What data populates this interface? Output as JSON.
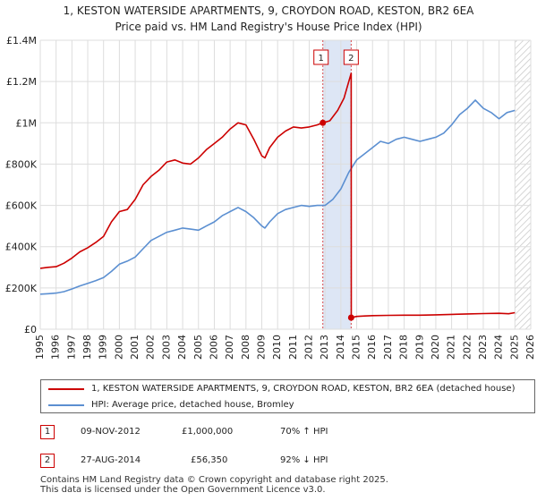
{
  "title_line1": "1, KESTON WATERSIDE APARTMENTS, 9, CROYDON ROAD, KESTON, BR2 6EA",
  "title_line2": "Price paid vs. HM Land Registry's House Price Index (HPI)",
  "chart_data": {
    "type": "line",
    "title": "1, KESTON WATERSIDE APARTMENTS, 9, CROYDON ROAD, KESTON, BR2 6EA - Price paid vs. HM Land Registry's House Price Index (HPI)",
    "xlabel": "",
    "ylabel": "",
    "xlim": [
      1995,
      2026
    ],
    "ylim": [
      0,
      1400000
    ],
    "y_ticks": [
      0,
      200000,
      400000,
      600000,
      800000,
      1000000,
      1200000,
      1400000
    ],
    "y_tick_labels": [
      "£0",
      "£200K",
      "£400K",
      "£600K",
      "£800K",
      "£1M",
      "£1.2M",
      "£1.4M"
    ],
    "x_ticks": [
      1995,
      1996,
      1997,
      1998,
      1999,
      2000,
      2001,
      2002,
      2003,
      2004,
      2005,
      2006,
      2007,
      2008,
      2009,
      2010,
      2011,
      2012,
      2013,
      2014,
      2015,
      2016,
      2017,
      2018,
      2019,
      2020,
      2021,
      2022,
      2023,
      2024,
      2025,
      2026
    ],
    "x_tick_labels": [
      "1995",
      "1996",
      "1997",
      "1998",
      "1999",
      "2000",
      "2001",
      "2002",
      "2003",
      "2004",
      "2005",
      "2006",
      "2007",
      "2008",
      "2009",
      "2010",
      "2011",
      "2012",
      "2013",
      "2014",
      "2015",
      "2016",
      "2017",
      "2018",
      "2019",
      "2020",
      "2021",
      "2022",
      "2023",
      "2024",
      "2025",
      "2026"
    ],
    "grid": true,
    "shaded_range": [
      2012.86,
      2014.65
    ],
    "hatched_from": 2025.0,
    "series": [
      {
        "name": "1, KESTON WATERSIDE APARTMENTS, 9, CROYDON ROAD, KESTON, BR2 6EA (detached house)",
        "color": "#cc0000",
        "x": [
          1995.0,
          1995.5,
          1996.0,
          1996.5,
          1997.0,
          1997.5,
          1998.0,
          1998.5,
          1999.0,
          1999.5,
          2000.0,
          2000.5,
          2001.0,
          2001.5,
          2002.0,
          2002.5,
          2003.0,
          2003.5,
          2004.0,
          2004.5,
          2005.0,
          2005.5,
          2006.0,
          2006.5,
          2007.0,
          2007.5,
          2008.0,
          2008.5,
          2009.0,
          2009.2,
          2009.5,
          2010.0,
          2010.5,
          2011.0,
          2011.5,
          2012.0,
          2012.5,
          2012.86,
          2013.3,
          2013.8,
          2014.2,
          2014.5,
          2014.65,
          2014.66,
          2015.0,
          2015.5,
          2016.0,
          2017.0,
          2018.0,
          2019.0,
          2020.0,
          2021.0,
          2022.0,
          2023.0,
          2024.0,
          2024.6,
          2025.0
        ],
        "values": [
          295000,
          300000,
          303000,
          320000,
          345000,
          375000,
          395000,
          420000,
          450000,
          520000,
          570000,
          580000,
          630000,
          700000,
          740000,
          770000,
          810000,
          820000,
          805000,
          800000,
          830000,
          870000,
          900000,
          930000,
          970000,
          1000000,
          990000,
          920000,
          840000,
          830000,
          880000,
          930000,
          960000,
          980000,
          975000,
          980000,
          990000,
          1000000,
          1010000,
          1060000,
          1120000,
          1200000,
          1240000,
          56350,
          62000,
          64000,
          66000,
          67000,
          68000,
          68000,
          70000,
          72000,
          74000,
          76000,
          77000,
          75000,
          80000
        ]
      },
      {
        "name": "HPI: Average price, detached house, Bromley",
        "color": "#5b8fd1",
        "x": [
          1995.0,
          1995.5,
          1996.0,
          1996.5,
          1997.0,
          1997.5,
          1998.0,
          1998.5,
          1999.0,
          1999.5,
          2000.0,
          2000.5,
          2001.0,
          2001.5,
          2002.0,
          2002.5,
          2003.0,
          2003.5,
          2004.0,
          2004.5,
          2005.0,
          2005.5,
          2006.0,
          2006.5,
          2007.0,
          2007.5,
          2008.0,
          2008.5,
          2009.0,
          2009.2,
          2009.5,
          2010.0,
          2010.5,
          2011.0,
          2011.5,
          2012.0,
          2012.5,
          2013.0,
          2013.5,
          2014.0,
          2014.5,
          2015.0,
          2015.5,
          2016.0,
          2016.5,
          2017.0,
          2017.5,
          2018.0,
          2018.5,
          2019.0,
          2019.5,
          2020.0,
          2020.5,
          2021.0,
          2021.5,
          2022.0,
          2022.5,
          2023.0,
          2023.5,
          2024.0,
          2024.5,
          2025.0
        ],
        "values": [
          170000,
          172000,
          175000,
          182000,
          195000,
          210000,
          222000,
          235000,
          250000,
          280000,
          315000,
          330000,
          350000,
          390000,
          430000,
          450000,
          470000,
          480000,
          490000,
          485000,
          480000,
          500000,
          520000,
          550000,
          570000,
          590000,
          570000,
          540000,
          500000,
          490000,
          520000,
          560000,
          580000,
          590000,
          600000,
          595000,
          600000,
          600000,
          630000,
          680000,
          760000,
          820000,
          850000,
          880000,
          910000,
          900000,
          920000,
          930000,
          920000,
          910000,
          920000,
          930000,
          950000,
          990000,
          1040000,
          1070000,
          1110000,
          1070000,
          1050000,
          1020000,
          1050000,
          1060000
        ]
      }
    ],
    "annotations": [
      {
        "label": "1",
        "x": 2012.86,
        "y": 1000000
      },
      {
        "label": "2",
        "x": 2014.65,
        "y": 56350
      }
    ]
  },
  "legend": {
    "items": [
      {
        "label": "1, KESTON WATERSIDE APARTMENTS, 9, CROYDON ROAD, KESTON, BR2 6EA (detached house)",
        "color": "#cc0000"
      },
      {
        "label": "HPI: Average price, detached house, Bromley",
        "color": "#5b8fd1"
      }
    ]
  },
  "transactions": [
    {
      "num": "1",
      "date": "09-NOV-2012",
      "price": "£1,000,000",
      "hpi": "70% ↑ HPI"
    },
    {
      "num": "2",
      "date": "27-AUG-2014",
      "price": "£56,350",
      "hpi": "92% ↓ HPI"
    }
  ],
  "footer": {
    "line1": "Contains HM Land Registry data © Crown copyright and database right 2025.",
    "line2": "This data is licensed under the Open Government Licence v3.0."
  }
}
